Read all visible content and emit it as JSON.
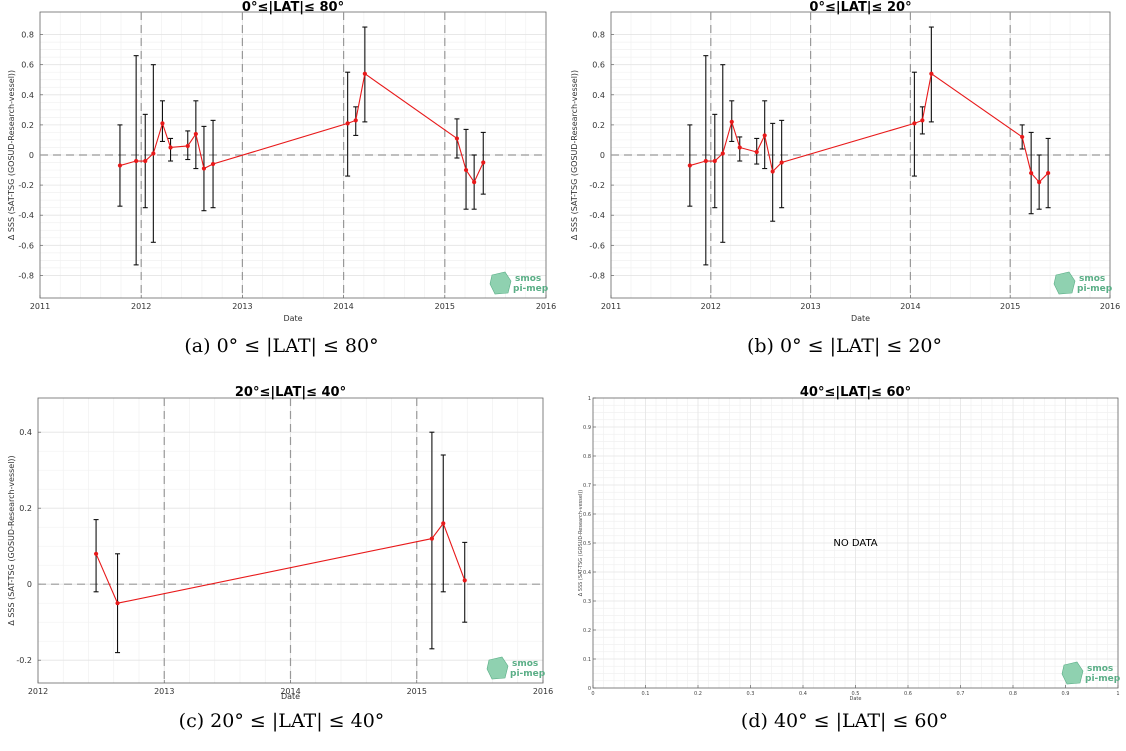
{
  "chart_data": [
    {
      "id": "a",
      "type": "line",
      "title": "0°≤|LAT|≤ 80°",
      "caption": "(a) 0° ≤ |LAT| ≤ 80°",
      "xlabel": "Date",
      "ylabel": "Δ SSS (SAT-TSG (GOSUD-Research-vessel))",
      "xlim": [
        2011,
        2016
      ],
      "ylim": [
        -0.95,
        0.95
      ],
      "xticks": [
        2011,
        2012,
        2013,
        2014,
        2015,
        2016
      ],
      "xtick_labels": [
        "2011",
        "2012",
        "2013",
        "2014",
        "2015",
        "2016"
      ],
      "yticks": [
        -0.8,
        -0.6,
        -0.4,
        -0.2,
        0,
        0.2,
        0.4,
        0.6,
        0.8
      ],
      "ytick_labels": [
        "-0.8",
        "-0.6",
        "-0.4",
        "-0.2",
        "0",
        "0.2",
        "0.4",
        "0.6",
        "0.8"
      ],
      "vlines": [
        2012,
        2013,
        2014,
        2015
      ],
      "hline": 0,
      "grid": true,
      "series": [
        {
          "color": "#e8191a",
          "x": [
            2011.79,
            2011.95,
            2012.04,
            2012.12,
            2012.21,
            2012.29,
            2012.46,
            2012.54,
            2012.62,
            2012.71,
            2014.04,
            2014.12,
            2014.21,
            2015.12,
            2015.21,
            2015.29,
            2015.38
          ],
          "y": [
            -0.07,
            -0.04,
            -0.04,
            0.01,
            0.21,
            0.05,
            0.06,
            0.14,
            -0.09,
            -0.06,
            0.21,
            0.23,
            0.54,
            0.11,
            -0.1,
            -0.18,
            -0.05
          ],
          "err_low": [
            -0.34,
            -0.73,
            -0.35,
            -0.58,
            0.09,
            -0.04,
            -0.03,
            -0.09,
            -0.37,
            -0.35,
            -0.14,
            0.13,
            0.22,
            -0.02,
            -0.36,
            -0.36,
            -0.26
          ],
          "err_high": [
            0.2,
            0.66,
            0.27,
            0.6,
            0.36,
            0.11,
            0.16,
            0.36,
            0.19,
            0.23,
            0.55,
            0.32,
            0.85,
            0.24,
            0.17,
            0.0,
            0.15
          ]
        }
      ]
    },
    {
      "id": "b",
      "type": "line",
      "title": "0°≤|LAT|≤ 20°",
      "caption": "(b) 0° ≤ |LAT| ≤ 20°",
      "xlabel": "Date",
      "ylabel": "Δ SSS (SAT-TSG (GOSUD-Research-vessel))",
      "xlim": [
        2011,
        2016
      ],
      "ylim": [
        -0.95,
        0.95
      ],
      "xticks": [
        2011,
        2012,
        2013,
        2014,
        2015,
        2016
      ],
      "xtick_labels": [
        "2011",
        "2012",
        "2013",
        "2014",
        "2015",
        "2016"
      ],
      "yticks": [
        -0.8,
        -0.6,
        -0.4,
        -0.2,
        0,
        0.2,
        0.4,
        0.6,
        0.8
      ],
      "ytick_labels": [
        "-0.8",
        "-0.6",
        "-0.4",
        "-0.2",
        "0",
        "0.2",
        "0.4",
        "0.6",
        "0.8"
      ],
      "vlines": [
        2012,
        2013,
        2014,
        2015
      ],
      "hline": 0,
      "grid": true,
      "series": [
        {
          "color": "#e8191a",
          "x": [
            2011.79,
            2011.95,
            2012.04,
            2012.12,
            2012.21,
            2012.29,
            2012.46,
            2012.54,
            2012.62,
            2012.71,
            2014.04,
            2014.12,
            2014.21,
            2015.12,
            2015.21,
            2015.29,
            2015.38
          ],
          "y": [
            -0.07,
            -0.04,
            -0.04,
            0.01,
            0.22,
            0.05,
            0.02,
            0.13,
            -0.11,
            -0.05,
            0.21,
            0.23,
            0.54,
            0.12,
            -0.12,
            -0.18,
            -0.12
          ],
          "err_low": [
            -0.34,
            -0.73,
            -0.35,
            -0.58,
            0.09,
            -0.04,
            -0.06,
            -0.09,
            -0.44,
            -0.35,
            -0.14,
            0.14,
            0.22,
            0.04,
            -0.39,
            -0.36,
            -0.35
          ],
          "err_high": [
            0.2,
            0.66,
            0.27,
            0.6,
            0.36,
            0.12,
            0.11,
            0.36,
            0.21,
            0.23,
            0.55,
            0.32,
            0.85,
            0.2,
            0.15,
            0.0,
            0.11
          ]
        }
      ]
    },
    {
      "id": "c",
      "type": "line",
      "title": "20°≤|LAT|≤ 40°",
      "caption": "(c) 20° ≤ |LAT| ≤ 40°",
      "xlabel": "Date",
      "ylabel": "Δ SSS (SAT-TSG (GOSUD-Research-vessel))",
      "xlim": [
        2012,
        2016
      ],
      "ylim": [
        -0.26,
        0.49
      ],
      "xticks": [
        2012,
        2013,
        2014,
        2015,
        2016
      ],
      "xtick_labels": [
        "2012",
        "2013",
        "2014",
        "2015",
        "2016"
      ],
      "yticks": [
        -0.2,
        0,
        0.2,
        0.4
      ],
      "ytick_labels": [
        "-0.2",
        "0",
        "0.2",
        "0.4"
      ],
      "vlines": [
        2013,
        2014,
        2015
      ],
      "hline": 0,
      "grid": true,
      "series": [
        {
          "color": "#e8191a",
          "x": [
            2012.46,
            2012.63,
            2015.12,
            2015.21,
            2015.38
          ],
          "y": [
            0.08,
            -0.05,
            0.12,
            0.16,
            0.01
          ],
          "err_low": [
            -0.02,
            -0.18,
            -0.17,
            -0.02,
            -0.1
          ],
          "err_high": [
            0.17,
            0.08,
            0.4,
            0.34,
            0.11
          ]
        }
      ]
    },
    {
      "id": "d",
      "type": "line",
      "title": "40°≤|LAT|≤ 60°",
      "caption": "(d) 40° ≤ |LAT| ≤ 60°",
      "xlabel": "Date",
      "ylabel": "Δ SSS (SAT-TSG (GOSUD-Research-vessel))",
      "xlim": [
        0,
        1
      ],
      "ylim": [
        0,
        1
      ],
      "xticks": [
        0,
        0.1,
        0.2,
        0.3,
        0.4,
        0.5,
        0.6,
        0.7,
        0.8,
        0.9,
        1
      ],
      "xtick_labels": [
        "0",
        "0.1",
        "0.2",
        "0.3",
        "0.4",
        "0.5",
        "0.6",
        "0.7",
        "0.8",
        "0.9",
        "1"
      ],
      "yticks": [
        0,
        0.1,
        0.2,
        0.3,
        0.4,
        0.5,
        0.6,
        0.7,
        0.8,
        0.9,
        1
      ],
      "ytick_labels": [
        "0",
        "0.1",
        "0.2",
        "0.3",
        "0.4",
        "0.5",
        "0.6",
        "0.7",
        "0.8",
        "0.9",
        "1"
      ],
      "vlines": [],
      "grid": true,
      "annotation": "NO DATA",
      "series": []
    }
  ],
  "logo": {
    "line1": "smos",
    "line2": "pi-mep"
  }
}
